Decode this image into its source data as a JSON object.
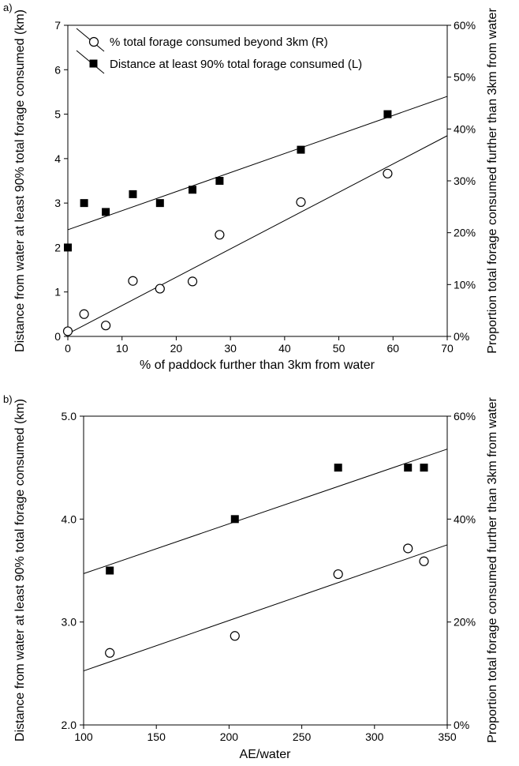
{
  "chart_data": [
    {
      "panel": "a)",
      "type": "scatter",
      "xlabel": "% of paddock further than 3km from water",
      "ylabel_left": "Distance from water at least 90% total forage consumed (km)",
      "ylabel_right": "Proportion total forage consumed further than 3km from water",
      "xlim": [
        0,
        70
      ],
      "ylim_left": [
        0,
        7
      ],
      "ylim_right": [
        0,
        0.6
      ],
      "x_ticks": [
        "0",
        "10",
        "20",
        "30",
        "40",
        "50",
        "60",
        "70"
      ],
      "y_ticks_left": [
        "0",
        "1",
        "2",
        "3",
        "4",
        "5",
        "6",
        "7"
      ],
      "y_ticks_right": [
        "0%",
        "10%",
        "20%",
        "30%",
        "40%",
        "50%",
        "60%"
      ],
      "legend": [
        "% total forage consumed beyond 3km (R)",
        "Distance at least 90% total forage consumed (L)"
      ],
      "legend_position": "top-left",
      "series": [
        {
          "name": "% total forage consumed beyond 3km (R)",
          "axis": "right",
          "marker": "open-circle",
          "x": [
            0,
            3,
            7,
            12,
            17,
            23,
            28,
            43,
            59
          ],
          "y": [
            0.01,
            0.043,
            0.021,
            0.107,
            0.092,
            0.106,
            0.196,
            0.259,
            0.314
          ]
        },
        {
          "name": "Distance at least 90% total forage consumed (L)",
          "axis": "left",
          "marker": "filled-square",
          "x": [
            0,
            3,
            7,
            12,
            17,
            23,
            28,
            43,
            59
          ],
          "y": [
            2.0,
            3.0,
            2.8,
            3.2,
            3.0,
            3.3,
            3.5,
            4.2,
            5.0
          ]
        }
      ],
      "trendlines": [
        {
          "series": "left",
          "x": [
            0,
            70
          ],
          "y": [
            2.4,
            5.4
          ]
        },
        {
          "series": "right",
          "x": [
            0,
            70
          ],
          "y": [
            0.005,
            0.387
          ]
        }
      ]
    },
    {
      "panel": "b)",
      "type": "scatter",
      "xlabel": "AE/water",
      "ylabel_left": "Distance from water at least 90% total forage consumed (km)",
      "ylabel_right": "Proportion total forage consumed further than 3km from water",
      "xlim": [
        100,
        350
      ],
      "ylim_left": [
        2.0,
        5.0
      ],
      "ylim_right": [
        0,
        0.6
      ],
      "x_ticks": [
        "100",
        "150",
        "200",
        "250",
        "300",
        "350"
      ],
      "y_ticks_left": [
        "2.0",
        "3.0",
        "4.0",
        "5.0"
      ],
      "y_ticks_right": [
        "0%",
        "20%",
        "40%",
        "60%"
      ],
      "series": [
        {
          "axis": "left",
          "marker": "filled-square",
          "x": [
            118,
            204,
            275,
            323,
            334
          ],
          "y": [
            3.5,
            4.0,
            4.5,
            4.5,
            4.5
          ]
        },
        {
          "axis": "right",
          "marker": "open-circle",
          "x": [
            118,
            204,
            275,
            323,
            334
          ],
          "y": [
            0.14,
            0.173,
            0.293,
            0.343,
            0.318
          ]
        }
      ],
      "trendlines": [
        {
          "series": "left",
          "x": [
            100,
            350
          ],
          "y": [
            3.47,
            4.68
          ]
        },
        {
          "series": "right",
          "x": [
            100,
            350
          ],
          "y": [
            0.105,
            0.35
          ]
        }
      ]
    }
  ]
}
